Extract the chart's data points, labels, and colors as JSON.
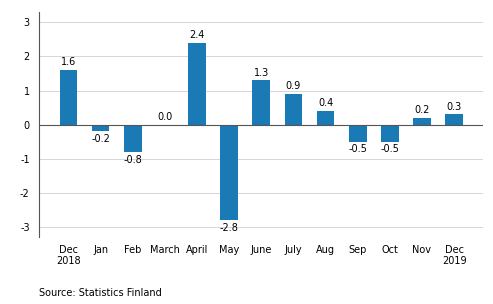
{
  "categories": [
    "Dec\n2018",
    "Jan",
    "Feb",
    "March",
    "April",
    "May",
    "June",
    "July",
    "Aug",
    "Sep",
    "Oct",
    "Nov",
    "Dec\n2019"
  ],
  "values": [
    1.6,
    -0.2,
    -0.8,
    0.0,
    2.4,
    -2.8,
    1.3,
    0.9,
    0.4,
    -0.5,
    -0.5,
    0.2,
    0.3
  ],
  "bar_color": "#1a7ab5",
  "ylim": [
    -3.3,
    3.3
  ],
  "yticks": [
    -3,
    -2,
    -1,
    0,
    1,
    2,
    3
  ],
  "source_text": "Source: Statistics Finland",
  "background_color": "#ffffff",
  "label_fontsize": 7.0,
  "tick_fontsize": 7.0,
  "source_fontsize": 7.0,
  "bar_width": 0.55
}
